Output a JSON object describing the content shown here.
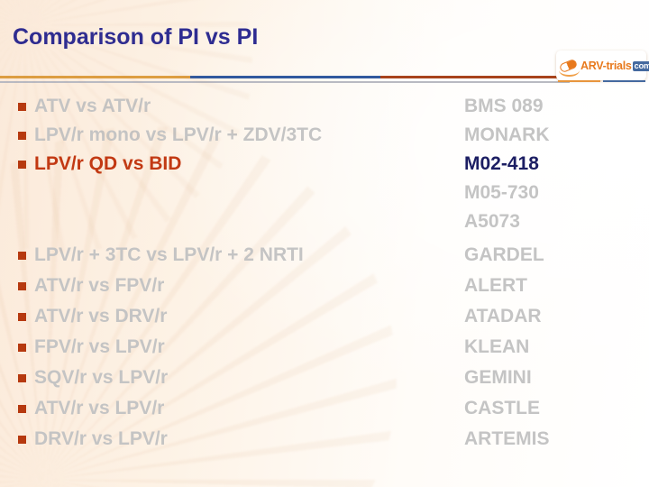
{
  "slide": {
    "title": "Comparison of PI vs PI",
    "colors": {
      "title_blue": "#2e2c91",
      "gray_text": "#c4c4c4",
      "highlight_red": "#c23812",
      "highlight_navy": "#1c1e63",
      "bullet_rust": "#b6390f",
      "divider_orange": "#dd9e42",
      "divider_blue": "#31599e",
      "divider_rust": "#a8431c",
      "background_cream": "#fbeada"
    }
  },
  "logo": {
    "brand": "ARV-trials",
    "tld": "com",
    "icon": "pill-icon"
  },
  "list": {
    "rows": [
      {
        "comparison": "ATV vs ATV/r",
        "trials": [
          "BMS 089"
        ],
        "highlighted": false,
        "gap_after": false
      },
      {
        "comparison": "LPV/r mono vs LPV/r + ZDV/3TC",
        "trials": [
          "MONARK"
        ],
        "highlighted": false,
        "gap_after": false
      },
      {
        "comparison": "LPV/r QD vs BID",
        "trials": [
          "M02-418",
          "M05-730",
          "A5073"
        ],
        "highlighted": true,
        "gap_after": true
      },
      {
        "comparison": "LPV/r + 3TC vs LPV/r + 2 NRTI",
        "trials": [
          "GARDEL"
        ],
        "highlighted": false,
        "gap_after": false
      },
      {
        "comparison": "ATV/r vs FPV/r",
        "trials": [
          "ALERT"
        ],
        "highlighted": false,
        "gap_after": false
      },
      {
        "comparison": "ATV/r vs DRV/r",
        "trials": [
          "ATADAR"
        ],
        "highlighted": false,
        "gap_after": false
      },
      {
        "comparison": "FPV/r vs LPV/r",
        "trials": [
          "KLEAN"
        ],
        "highlighted": false,
        "gap_after": false
      },
      {
        "comparison": "SQV/r vs LPV/r",
        "trials": [
          "GEMINI"
        ],
        "highlighted": false,
        "gap_after": false
      },
      {
        "comparison": "ATV/r vs LPV/r",
        "trials": [
          "CASTLE"
        ],
        "highlighted": false,
        "gap_after": false
      },
      {
        "comparison": "DRV/r vs LPV/r",
        "trials": [
          "ARTEMIS"
        ],
        "highlighted": false,
        "gap_after": false
      }
    ]
  }
}
